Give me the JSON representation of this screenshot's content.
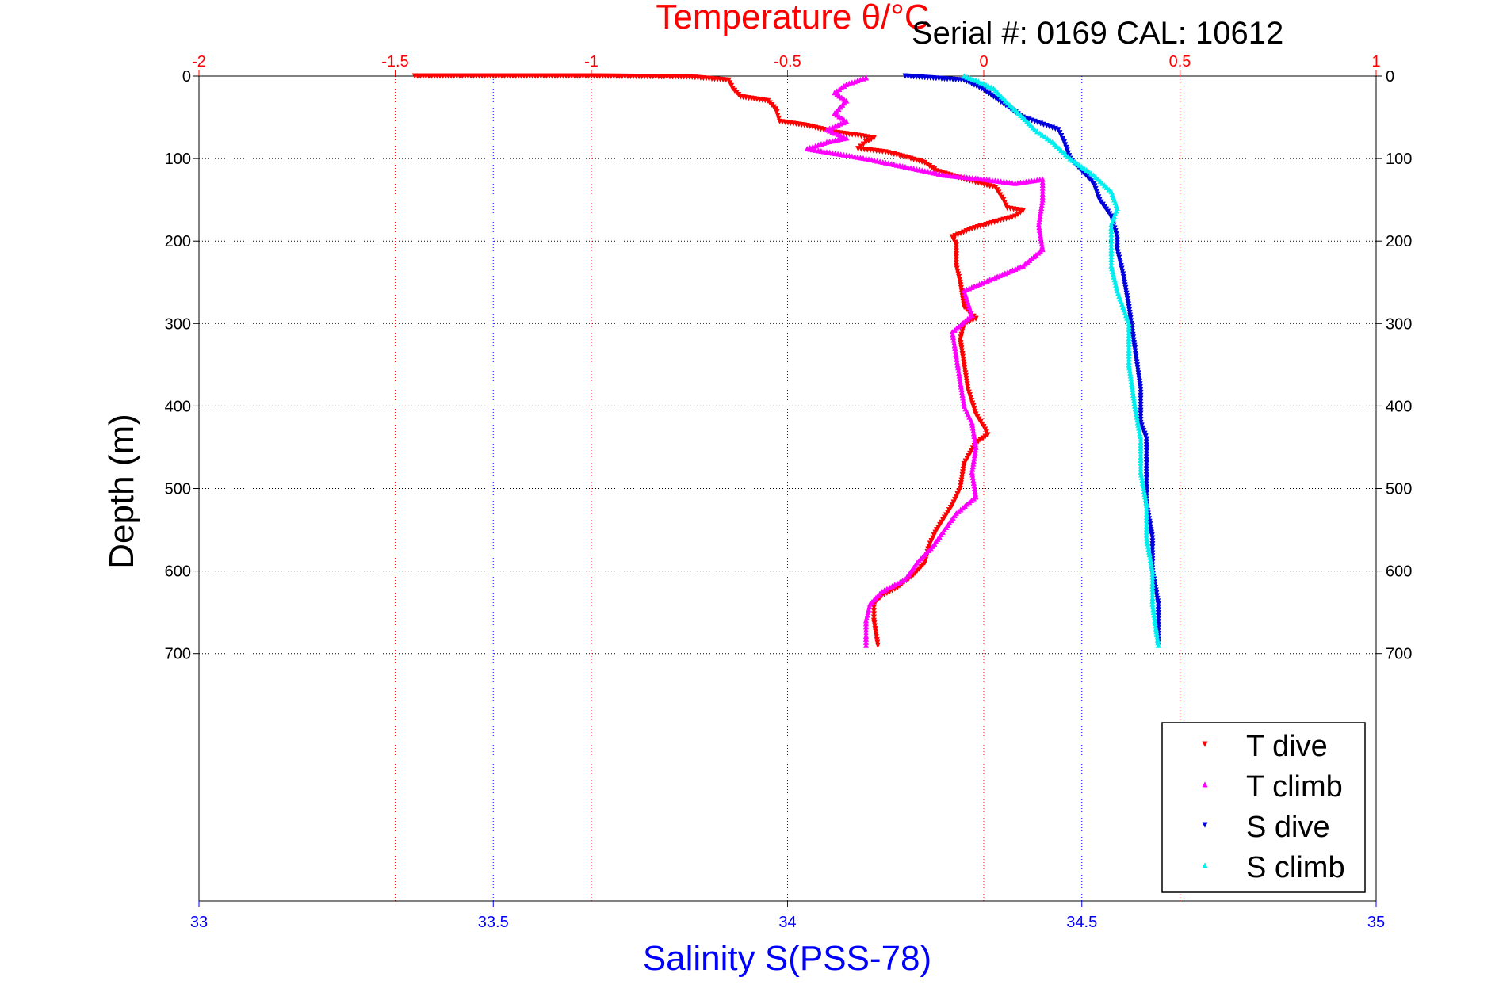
{
  "chart_data": {
    "type": "scatter",
    "title": "Temperature θ/°C",
    "serial_text": "Serial #: 0169 CAL: 10612",
    "ylabel": "Depth (m)",
    "xlabel_bottom": "Salinity S(PSS-78)",
    "xlabel_top": "Temperature θ/°C",
    "x_top": {
      "range": [
        -2,
        1
      ],
      "ticks": [
        -2,
        -1.5,
        -1,
        -0.5,
        0,
        0.5,
        1
      ],
      "tick_labels": [
        "-2",
        "-1.5",
        "-1",
        "-0.5",
        "0",
        "0.5",
        "1"
      ],
      "color": "#ff0000"
    },
    "x_bottom": {
      "range": [
        33,
        35
      ],
      "ticks": [
        33,
        33.5,
        34,
        34.5,
        35
      ],
      "tick_labels": [
        "33",
        "33.5",
        "34",
        "34.5",
        "35"
      ],
      "color": "#0000ff"
    },
    "y": {
      "range": [
        0,
        1000
      ],
      "inverted": true,
      "ticks": [
        0,
        100,
        200,
        300,
        400,
        500,
        600,
        700
      ],
      "tick_labels": [
        "0",
        "100",
        "200",
        "300",
        "400",
        "500",
        "600",
        "700"
      ]
    },
    "grid": true,
    "legend_position": "bottom-right",
    "series": [
      {
        "name": "T dive",
        "axis": "top",
        "color": "#ff0000",
        "marker": "triangle-down",
        "points": [
          [
            -1.45,
            0
          ],
          [
            -1.0,
            0
          ],
          [
            -0.75,
            1
          ],
          [
            -0.65,
            5
          ],
          [
            -0.64,
            15
          ],
          [
            -0.62,
            25
          ],
          [
            -0.55,
            30
          ],
          [
            -0.53,
            40
          ],
          [
            -0.52,
            55
          ],
          [
            -0.45,
            60
          ],
          [
            -0.38,
            68
          ],
          [
            -0.32,
            72
          ],
          [
            -0.28,
            75
          ],
          [
            -0.3,
            80
          ],
          [
            -0.32,
            88
          ],
          [
            -0.25,
            92
          ],
          [
            -0.2,
            98
          ],
          [
            -0.15,
            105
          ],
          [
            -0.12,
            115
          ],
          [
            -0.05,
            125
          ],
          [
            0.03,
            135
          ],
          [
            0.05,
            150
          ],
          [
            0.06,
            160
          ],
          [
            0.1,
            163
          ],
          [
            0.08,
            170
          ],
          [
            0.02,
            178
          ],
          [
            -0.03,
            185
          ],
          [
            -0.08,
            195
          ],
          [
            -0.07,
            205
          ],
          [
            -0.07,
            230
          ],
          [
            -0.06,
            250
          ],
          [
            -0.05,
            280
          ],
          [
            -0.02,
            294
          ],
          [
            -0.05,
            300
          ],
          [
            -0.06,
            320
          ],
          [
            -0.05,
            350
          ],
          [
            -0.04,
            380
          ],
          [
            -0.02,
            410
          ],
          [
            0.0,
            425
          ],
          [
            0.01,
            435
          ],
          [
            -0.02,
            445
          ],
          [
            -0.05,
            470
          ],
          [
            -0.06,
            500
          ],
          [
            -0.08,
            520
          ],
          [
            -0.12,
            550
          ],
          [
            -0.14,
            570
          ],
          [
            -0.15,
            590
          ],
          [
            -0.18,
            605
          ],
          [
            -0.22,
            620
          ],
          [
            -0.26,
            630
          ],
          [
            -0.28,
            640
          ],
          [
            -0.28,
            660
          ],
          [
            -0.27,
            690
          ]
        ]
      },
      {
        "name": "T climb",
        "axis": "top",
        "color": "#ff00ff",
        "marker": "triangle-up",
        "points": [
          [
            -0.3,
            690
          ],
          [
            -0.3,
            660
          ],
          [
            -0.29,
            640
          ],
          [
            -0.26,
            625
          ],
          [
            -0.2,
            610
          ],
          [
            -0.17,
            590
          ],
          [
            -0.13,
            570
          ],
          [
            -0.1,
            550
          ],
          [
            -0.07,
            530
          ],
          [
            -0.02,
            510
          ],
          [
            -0.03,
            480
          ],
          [
            -0.02,
            450
          ],
          [
            -0.03,
            420
          ],
          [
            -0.05,
            400
          ],
          [
            -0.06,
            370
          ],
          [
            -0.07,
            340
          ],
          [
            -0.08,
            310
          ],
          [
            -0.03,
            290
          ],
          [
            -0.05,
            260
          ],
          [
            0.1,
            230
          ],
          [
            0.15,
            210
          ],
          [
            0.14,
            180
          ],
          [
            0.15,
            150
          ],
          [
            0.15,
            125
          ],
          [
            0.08,
            130
          ],
          [
            0.0,
            125
          ],
          [
            -0.1,
            120
          ],
          [
            -0.2,
            110
          ],
          [
            -0.3,
            100
          ],
          [
            -0.45,
            88
          ],
          [
            -0.4,
            80
          ],
          [
            -0.35,
            75
          ],
          [
            -0.4,
            65
          ],
          [
            -0.35,
            55
          ],
          [
            -0.38,
            45
          ],
          [
            -0.35,
            30
          ],
          [
            -0.38,
            20
          ],
          [
            -0.35,
            10
          ],
          [
            -0.3,
            2
          ]
        ]
      },
      {
        "name": "S dive",
        "axis": "bottom",
        "color": "#0000dd",
        "marker": "triangle-down",
        "points": [
          [
            34.2,
            0
          ],
          [
            34.3,
            5
          ],
          [
            34.33,
            15
          ],
          [
            34.35,
            25
          ],
          [
            34.4,
            50
          ],
          [
            34.44,
            60
          ],
          [
            34.46,
            65
          ],
          [
            34.47,
            80
          ],
          [
            34.48,
            100
          ],
          [
            34.5,
            115
          ],
          [
            34.52,
            130
          ],
          [
            34.53,
            150
          ],
          [
            34.55,
            170
          ],
          [
            34.56,
            195
          ],
          [
            34.56,
            210
          ],
          [
            34.57,
            240
          ],
          [
            34.58,
            280
          ],
          [
            34.59,
            330
          ],
          [
            34.6,
            380
          ],
          [
            34.6,
            420
          ],
          [
            34.61,
            440
          ],
          [
            34.61,
            480
          ],
          [
            34.61,
            520
          ],
          [
            34.62,
            560
          ],
          [
            34.62,
            600
          ],
          [
            34.63,
            640
          ],
          [
            34.63,
            690
          ]
        ]
      },
      {
        "name": "S climb",
        "axis": "bottom",
        "color": "#00eeee",
        "marker": "triangle-up",
        "points": [
          [
            34.63,
            690
          ],
          [
            34.62,
            640
          ],
          [
            34.62,
            600
          ],
          [
            34.61,
            560
          ],
          [
            34.61,
            520
          ],
          [
            34.6,
            480
          ],
          [
            34.6,
            440
          ],
          [
            34.59,
            400
          ],
          [
            34.58,
            350
          ],
          [
            34.58,
            300
          ],
          [
            34.56,
            260
          ],
          [
            34.55,
            230
          ],
          [
            34.55,
            200
          ],
          [
            34.55,
            180
          ],
          [
            34.56,
            160
          ],
          [
            34.55,
            140
          ],
          [
            34.52,
            120
          ],
          [
            34.48,
            100
          ],
          [
            34.45,
            80
          ],
          [
            34.42,
            65
          ],
          [
            34.4,
            50
          ],
          [
            34.37,
            30
          ],
          [
            34.35,
            15
          ],
          [
            34.32,
            5
          ],
          [
            34.3,
            0
          ]
        ]
      }
    ]
  }
}
